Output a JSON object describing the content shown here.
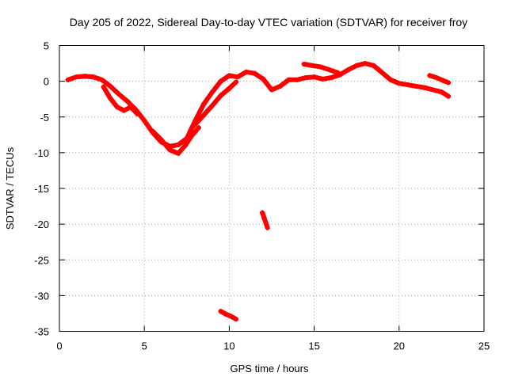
{
  "chart_data": {
    "type": "scatter",
    "title": "Day 205 of 2022, Sidereal Day-to-day VTEC variation (SDTVAR) for receiver froy",
    "xlabel": "GPS time / hours",
    "ylabel": "SDTVAR / TECUs",
    "xlim": [
      0,
      25
    ],
    "ylim": [
      -35,
      5
    ],
    "xticks": [
      0,
      5,
      10,
      15,
      20,
      25
    ],
    "yticks": [
      5,
      0,
      -5,
      -10,
      -15,
      -20,
      -25,
      -30,
      -35
    ],
    "grid": true,
    "color": "#ff0000",
    "series": [
      {
        "name": "main-trace",
        "x": [
          0.5,
          1.0,
          1.5,
          2.0,
          2.5,
          3.0,
          3.5,
          4.0,
          4.5,
          5.0,
          5.5,
          6.0,
          6.5,
          7.0,
          7.5,
          8.0,
          8.5,
          9.0,
          9.5,
          10.0,
          10.5,
          11.0,
          11.5,
          12.0,
          12.5,
          13.0,
          13.5,
          14.0,
          14.5,
          15.0,
          15.5,
          16.0,
          16.5,
          17.0,
          17.5,
          18.0,
          18.5,
          19.0,
          19.5,
          20.0,
          20.5,
          21.0,
          21.5,
          22.0,
          22.5,
          22.9
        ],
        "y": [
          0.2,
          0.6,
          0.7,
          0.6,
          0.2,
          -0.7,
          -1.8,
          -2.8,
          -4.0,
          -5.5,
          -7.2,
          -8.5,
          -9.1,
          -8.9,
          -8.0,
          -5.5,
          -3.2,
          -1.5,
          0.0,
          0.8,
          0.6,
          1.3,
          1.1,
          0.3,
          -1.2,
          -0.7,
          0.2,
          0.2,
          0.5,
          0.6,
          0.3,
          0.5,
          0.9,
          1.6,
          2.2,
          2.5,
          2.2,
          1.2,
          0.2,
          -0.3,
          -0.5,
          -0.7,
          -0.9,
          -1.2,
          -1.5,
          -2.1
        ]
      },
      {
        "name": "branch-lower-1",
        "x": [
          2.6,
          3.0,
          3.4,
          3.8,
          4.2,
          4.6
        ],
        "y": [
          -0.8,
          -2.4,
          -3.6,
          -4.1,
          -3.6,
          -4.6
        ]
      },
      {
        "name": "branch-lower-2",
        "x": [
          5.5,
          6.0,
          6.5,
          7.0,
          7.4,
          7.8,
          8.2
        ],
        "y": [
          -7.0,
          -8.2,
          -9.6,
          -10.1,
          -9.0,
          -7.6,
          -6.5
        ]
      },
      {
        "name": "branch-rising",
        "x": [
          7.8,
          8.4,
          9.0,
          9.5,
          10.0,
          10.4
        ],
        "y": [
          -6.5,
          -5.0,
          -3.4,
          -2.0,
          -1.0,
          -0.1
        ]
      },
      {
        "name": "branch-plateau",
        "x": [
          14.4,
          14.9,
          15.4,
          15.9,
          16.4
        ],
        "y": [
          2.4,
          2.2,
          2.0,
          1.6,
          1.2
        ]
      },
      {
        "name": "branch-late",
        "x": [
          21.8,
          22.2,
          22.6,
          22.9
        ],
        "y": [
          0.8,
          0.5,
          0.1,
          -0.2
        ]
      },
      {
        "name": "outlier-1",
        "x": [
          11.95,
          12.05,
          12.15,
          12.25
        ],
        "y": [
          -18.4,
          -19.1,
          -19.8,
          -20.5
        ]
      },
      {
        "name": "outlier-2",
        "x": [
          9.5,
          9.8,
          10.1,
          10.4
        ],
        "y": [
          -32.2,
          -32.6,
          -32.9,
          -33.3
        ]
      }
    ]
  }
}
